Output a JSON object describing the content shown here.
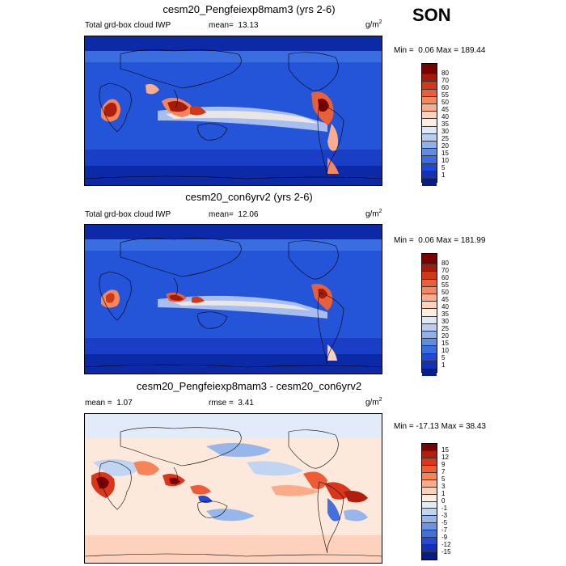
{
  "season": "SON",
  "units": {
    "base": "g/m",
    "exp": "2"
  },
  "panels": [
    {
      "title": "cesm20_Pengfeiexp8mam3 (yrs 2-6)",
      "left_label": "Total grd-box cloud IWP",
      "stat_label": "mean=",
      "stat_value": "13.13",
      "min_label": "Min =",
      "min_value": "0.06",
      "max_label": "Max =",
      "max_value": "189.44"
    },
    {
      "title": "cesm20_con6yrv2 (yrs 2-6)",
      "left_label": "Total grd-box cloud IWP",
      "stat_label": "mean=",
      "stat_value": "12.06",
      "min_label": "Min =",
      "min_value": "0.06",
      "max_label": "Max =",
      "max_value": "181.99"
    },
    {
      "title": "cesm20_Pengfeiexp8mam3 - cesm20_con6yrv2",
      "mean_label": "mean =",
      "mean_value": "1.07",
      "rmse_label": "rmse =",
      "rmse_value": "3.41",
      "min_label": "Min =",
      "min_value": "-17.13",
      "max_label": "Max =",
      "max_value": "38.43"
    }
  ],
  "colorbars": {
    "field": {
      "labels": [
        "80",
        "70",
        "60",
        "55",
        "50",
        "45",
        "40",
        "35",
        "30",
        "25",
        "20",
        "15",
        "10",
        "5",
        "1"
      ],
      "colors": [
        "#7a0000",
        "#a51b0b",
        "#cf3818",
        "#e8603a",
        "#f4875e",
        "#f9ad8c",
        "#fcd2bc",
        "#fdeee4",
        "#dde8f8",
        "#b8cdf0",
        "#8fb0e8",
        "#5f8de3",
        "#3a6de0",
        "#2049d4",
        "#1230b8",
        "#061b8c"
      ]
    },
    "diff": {
      "labels": [
        "15",
        "12",
        "9",
        "7",
        "5",
        "3",
        "1",
        "0",
        "-1",
        "-3",
        "-5",
        "-7",
        "-9",
        "-12",
        "-15"
      ],
      "colors": [
        "#7a0000",
        "#b01e0c",
        "#d9361a",
        "#ee5b35",
        "#f6845a",
        "#fbab87",
        "#fdd0ba",
        "#fdeee4",
        "#e2ecf8",
        "#c0d5f1",
        "#97b6e9",
        "#6b94e3",
        "#4470dd",
        "#2649cf",
        "#1331b4",
        "#071b88"
      ]
    }
  },
  "chart_data": [
    {
      "type": "heatmap",
      "title": "cesm20_Pengfeiexp8mam3 (yrs 2-6)",
      "subtitle": "Total grd-box cloud IWP",
      "units": "g/m2",
      "mean": 13.13,
      "min": 0.06,
      "max": 189.44,
      "contour_levels": [
        1,
        5,
        10,
        15,
        20,
        25,
        30,
        35,
        40,
        45,
        50,
        55,
        60,
        70,
        80
      ],
      "features": [
        "highs over central Africa",
        "highs over Maritime Continent",
        "highs over northern South America and Central America",
        "tropical Pacific convergence band"
      ]
    },
    {
      "type": "heatmap",
      "title": "cesm20_con6yrv2 (yrs 2-6)",
      "subtitle": "Total grd-box cloud IWP",
      "units": "g/m2",
      "mean": 12.06,
      "min": 0.06,
      "max": 181.99,
      "contour_levels": [
        1,
        5,
        10,
        15,
        20,
        25,
        30,
        35,
        40,
        45,
        50,
        55,
        60,
        70,
        80
      ]
    },
    {
      "type": "heatmap",
      "title": "cesm20_Pengfeiexp8mam3 - cesm20_con6yrv2",
      "units": "g/m2",
      "mean": 1.07,
      "rmse": 3.41,
      "min": -17.13,
      "max": 38.43,
      "contour_levels": [
        -15,
        -12,
        -9,
        -7,
        -5,
        -3,
        -1,
        0,
        1,
        3,
        5,
        7,
        9,
        12,
        15
      ]
    }
  ]
}
